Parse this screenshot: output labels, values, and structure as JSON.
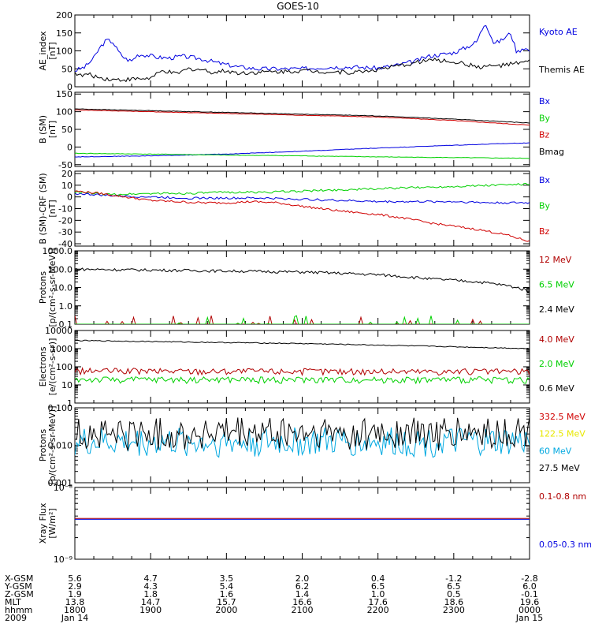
{
  "title": "GOES-10",
  "colors": {
    "black": "#000000",
    "blue": "#0000e0",
    "green": "#00d000",
    "red": "#d00000",
    "darkred": "#b00000",
    "yellow": "#e8e800",
    "cyan": "#00a8e0",
    "purple": "#c000c0"
  },
  "chart_data": [
    {
      "id": "ae",
      "type": "line",
      "ylabel": [
        "AE_index",
        "[nT]"
      ],
      "ylim": [
        0,
        200
      ],
      "yticks": [
        0,
        50,
        100,
        150,
        200
      ],
      "xlim": [
        0,
        360
      ],
      "series": [
        {
          "name": "Kyoto AE",
          "color": "blue",
          "x": [
            0,
            8,
            15,
            20,
            25,
            30,
            35,
            40,
            45,
            50,
            58,
            65,
            75,
            85,
            100,
            115,
            130,
            145,
            160,
            180,
            200,
            220,
            240,
            255,
            270,
            280,
            290,
            300,
            310,
            318,
            325,
            332,
            338,
            345,
            350,
            355,
            360
          ],
          "y": [
            45,
            55,
            80,
            110,
            130,
            125,
            95,
            78,
            72,
            90,
            88,
            82,
            80,
            85,
            78,
            65,
            55,
            50,
            50,
            50,
            55,
            55,
            52,
            60,
            72,
            85,
            90,
            95,
            110,
            125,
            180,
            120,
            130,
            150,
            95,
            110,
            100
          ]
        },
        {
          "name": "Themis AE",
          "color": "black",
          "x": [
            0,
            5,
            10,
            20,
            30,
            40,
            50,
            60,
            70,
            80,
            90,
            100,
            110,
            120,
            130,
            140,
            160,
            180,
            200,
            220,
            240,
            260,
            280,
            300,
            320,
            340,
            360
          ],
          "y": [
            40,
            30,
            35,
            25,
            20,
            20,
            22,
            24,
            45,
            35,
            50,
            48,
            40,
            45,
            38,
            40,
            42,
            45,
            42,
            40,
            48,
            60,
            75,
            70,
            55,
            60,
            70
          ]
        }
      ]
    },
    {
      "id": "b",
      "type": "line",
      "ylabel": [
        "B (SM)",
        "[nT]"
      ],
      "ylim": [
        -55,
        155
      ],
      "yticks": [
        -50,
        0,
        50,
        100,
        150
      ],
      "xlim": [
        0,
        360
      ],
      "series": [
        {
          "name": "Bx",
          "color": "blue",
          "x": [
            0,
            60,
            120,
            180,
            240,
            300,
            360
          ],
          "y": [
            -28,
            -25,
            -20,
            -12,
            -3,
            5,
            12
          ]
        },
        {
          "name": "By",
          "color": "green",
          "x": [
            0,
            60,
            120,
            180,
            240,
            300,
            360
          ],
          "y": [
            -18,
            -20,
            -23,
            -25,
            -28,
            -30,
            -32
          ]
        },
        {
          "name": "Bz",
          "color": "red",
          "x": [
            0,
            60,
            120,
            180,
            240,
            300,
            360
          ],
          "y": [
            105,
            100,
            95,
            90,
            85,
            75,
            62
          ]
        },
        {
          "name": "Bmag",
          "color": "black",
          "x": [
            0,
            60,
            120,
            180,
            240,
            300,
            360
          ],
          "y": [
            108,
            103,
            98,
            93,
            88,
            79,
            68
          ]
        }
      ]
    },
    {
      "id": "bmt",
      "type": "line",
      "ylabel": [
        "B (SM)-CRF (SM)",
        "[nT]"
      ],
      "ylim": [
        -42,
        22
      ],
      "yticks": [
        -40,
        -30,
        -20,
        -10,
        0,
        10,
        20
      ],
      "xlim": [
        0,
        360
      ],
      "series": [
        {
          "name": "Bx",
          "color": "blue",
          "x": [
            0,
            30,
            60,
            90,
            120,
            150,
            180,
            210,
            240,
            270,
            300,
            330,
            360
          ],
          "y": [
            3,
            1,
            0,
            -1,
            -1,
            -1,
            -2,
            -3,
            -4,
            -4,
            -4,
            -5,
            -5
          ]
        },
        {
          "name": "By",
          "color": "green",
          "x": [
            0,
            30,
            60,
            90,
            120,
            150,
            180,
            210,
            240,
            270,
            300,
            330,
            360
          ],
          "y": [
            4,
            2,
            3,
            3,
            4,
            4,
            5,
            6,
            7,
            8,
            9,
            10,
            11
          ]
        },
        {
          "name": "Bz",
          "color": "red",
          "x": [
            0,
            20,
            40,
            60,
            80,
            100,
            120,
            140,
            160,
            180,
            210,
            240,
            260,
            280,
            300,
            320,
            340,
            360
          ],
          "y": [
            5,
            3,
            0,
            -3,
            -4,
            -5,
            -5,
            -4,
            -5,
            -8,
            -12,
            -15,
            -18,
            -22,
            -25,
            -28,
            -32,
            -38
          ]
        }
      ]
    },
    {
      "id": "protons",
      "type": "line",
      "yscale": "log",
      "ylabel": [
        "Protons",
        "[p/(cm²-s-sr-MeV)]"
      ],
      "ylim": [
        0.1,
        1000
      ],
      "yticklabels": [
        "0.1",
        "1.0",
        "10.0",
        "100.0",
        "1000.0"
      ],
      "xlim": [
        0,
        360
      ],
      "series": [
        {
          "name": "12 MeV",
          "color": "darkred",
          "x": [
            0,
            360
          ],
          "y": [
            0.1,
            0.1
          ]
        },
        {
          "name": "6.5 MeV",
          "color": "green",
          "x": [
            0,
            360
          ],
          "y": [
            0.1,
            0.1
          ]
        },
        {
          "name": "2.4 MeV",
          "color": "black",
          "x": [
            0,
            60,
            120,
            180,
            240,
            280,
            320,
            350,
            360
          ],
          "y": [
            100,
            90,
            80,
            70,
            50,
            30,
            20,
            10,
            6
          ]
        }
      ]
    },
    {
      "id": "electrons",
      "type": "line",
      "yscale": "log",
      "ylabel": [
        "Electrons",
        "[e/(cm²-s-sr)]"
      ],
      "ylim": [
        1,
        10000
      ],
      "yticklabels": [
        "1",
        "10",
        "100",
        "1000",
        "10000"
      ],
      "xlim": [
        0,
        360
      ],
      "series": [
        {
          "name": "4.0 MeV",
          "color": "darkred",
          "x": [
            0,
            360
          ],
          "y": [
            60,
            55
          ]
        },
        {
          "name": "2.0 MeV",
          "color": "green",
          "x": [
            0,
            360
          ],
          "y": [
            20,
            20
          ]
        },
        {
          "name": "0.6 MeV",
          "color": "black",
          "x": [
            0,
            90,
            180,
            270,
            360
          ],
          "y": [
            2800,
            2300,
            1900,
            1400,
            1000
          ]
        }
      ]
    },
    {
      "id": "hiprotons",
      "type": "line",
      "yscale": "log",
      "ylabel": [
        "Protons",
        "[p/(cm²-s-sr-MeV)]"
      ],
      "ylim": [
        0.001,
        0.1
      ],
      "yticklabels": [
        "0.001",
        "0.010",
        "0.100"
      ],
      "xlim": [
        0,
        360
      ],
      "series": [
        {
          "name": "332.5 MeV",
          "color": "red",
          "x": [],
          "y": []
        },
        {
          "name": "122.5 MeV",
          "color": "yellow",
          "x": [],
          "y": []
        },
        {
          "name": "60 MeV",
          "color": "cyan",
          "x": [
            0,
            360
          ],
          "y": [
            0.012,
            0.012
          ]
        },
        {
          "name": "27.5 MeV",
          "color": "black",
          "x": [
            0,
            360
          ],
          "y": [
            0.02,
            0.02
          ]
        }
      ]
    },
    {
      "id": "xray",
      "type": "line",
      "yscale": "log",
      "ylabel": [
        "Xray Flux",
        "[W/m²]"
      ],
      "ylim": [
        1e-09,
        1e-08
      ],
      "yticklabels": [
        "10⁻⁹",
        "10⁻⁸"
      ],
      "xlim": [
        0,
        360
      ],
      "series": [
        {
          "name": "0.1-0.8 nm",
          "color": "darkred",
          "x": [
            0,
            360
          ],
          "y": [
            3.7e-09,
            3.7e-09
          ]
        },
        {
          "name": "0.05-0.3 nm",
          "color": "blue",
          "x": [
            0,
            360
          ],
          "y": [
            3.6e-09,
            3.6e-09
          ]
        }
      ]
    }
  ],
  "ephemeris": {
    "row_labels": [
      "X-GSM",
      "Y-GSM",
      "Z-GSM",
      "MLT",
      "hhmm",
      "2009"
    ],
    "columns": [
      [
        "5.6",
        "2.9",
        "1.9",
        "13.8",
        "1800",
        "Jan 14"
      ],
      [
        "4.7",
        "4.3",
        "1.8",
        "14.7",
        "1900",
        ""
      ],
      [
        "3.5",
        "5.4",
        "1.6",
        "15.7",
        "2000",
        ""
      ],
      [
        "2.0",
        "6.2",
        "1.4",
        "16.6",
        "2100",
        ""
      ],
      [
        "0.4",
        "6.5",
        "1.0",
        "17.6",
        "2200",
        ""
      ],
      [
        "-1.2",
        "6.5",
        "0.5",
        "18.6",
        "2300",
        ""
      ],
      [
        "-2.8",
        "6.0",
        "-0.1",
        "19.6",
        "0000",
        "Jan 15"
      ]
    ]
  }
}
